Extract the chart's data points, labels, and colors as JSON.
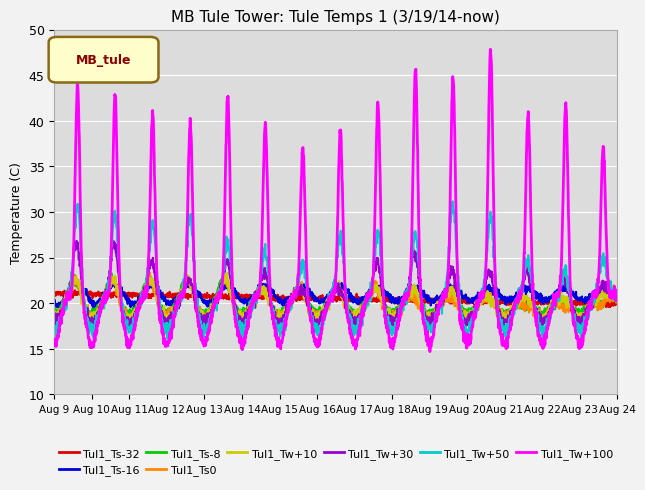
{
  "title": "MB Tule Tower: Tule Temps 1 (3/19/14-now)",
  "ylabel": "Temperature (C)",
  "ylim": [
    10,
    50
  ],
  "yticks": [
    10,
    15,
    20,
    25,
    30,
    35,
    40,
    45,
    50
  ],
  "xtick_labels": [
    "Aug 9",
    "Aug 10",
    "Aug 11",
    "Aug 12",
    "Aug 13",
    "Aug 14",
    "Aug 15",
    "Aug 16",
    "Aug 17",
    "Aug 18",
    "Aug 19",
    "Aug 20",
    "Aug 21",
    "Aug 22",
    "Aug 23",
    "Aug 24"
  ],
  "legend_label": "MB_tule",
  "series": [
    {
      "name": "Tul1_Ts-32",
      "color": "#dd0000"
    },
    {
      "name": "Tul1_Ts-16",
      "color": "#0000dd"
    },
    {
      "name": "Tul1_Ts-8",
      "color": "#00cc00"
    },
    {
      "name": "Tul1_Ts0",
      "color": "#ff8800"
    },
    {
      "name": "Tul1_Tw+10",
      "color": "#cccc00"
    },
    {
      "name": "Tul1_Tw+30",
      "color": "#9900cc"
    },
    {
      "name": "Tul1_Tw+50",
      "color": "#00cccc"
    },
    {
      "name": "Tul1_Tw+100",
      "color": "#ff00ff"
    }
  ],
  "background_color": "#dcdcdc",
  "title_fontsize": 11
}
